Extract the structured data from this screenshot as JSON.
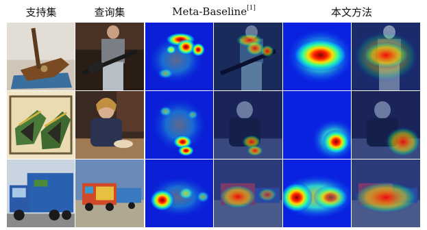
{
  "figure": {
    "headers": {
      "support": "支持集",
      "query": "查询集",
      "baseline": "Meta-Baseline",
      "baseline_ref": "[1]",
      "ours": "本文方法"
    },
    "rows": [
      {
        "support_content": "electric guitar on blue carpet",
        "query_content": "person playing electric guitar",
        "baseline_heatmap": "scattered hot spots on upper body",
        "baseline_overlay": "heatmap over guitarist",
        "ours_heatmap": "single large hot region at center",
        "ours_overlay": "heatmap over guitarist"
      },
      {
        "support_content": "pair of green shoes",
        "query_content": "child sitting near table",
        "baseline_heatmap": "scattered hot spots lower center",
        "baseline_overlay": "heatmap over child",
        "ours_heatmap": "hot region lower right",
        "ours_overlay": "heatmap over child"
      },
      {
        "support_content": "blue garbage truck",
        "query_content": "colorful trucks in yard",
        "baseline_heatmap": "hot spot lower left",
        "baseline_overlay": "heatmap over trucks",
        "ours_heatmap": "wide hot band across middle",
        "ours_overlay": "heatmap over trucks"
      }
    ]
  }
}
